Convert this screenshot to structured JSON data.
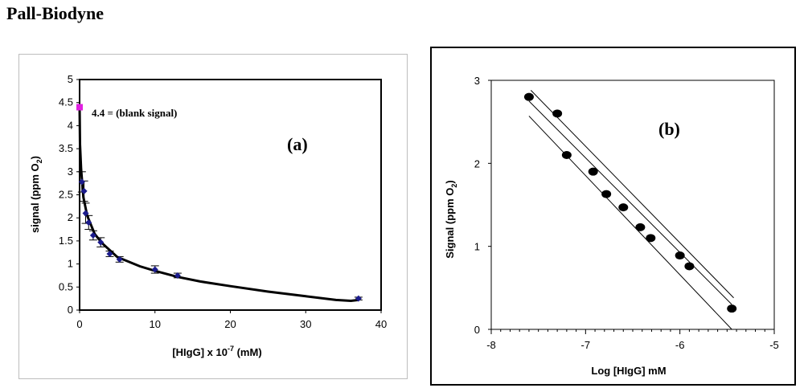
{
  "heading": "Pall-Biodyne",
  "chart_data": [
    {
      "type": "scatter",
      "panel_label": "(a)",
      "xlabel": "[HIgG] x 10",
      "xlabel_exp": "-7",
      "xlabel_unit": " (mM)",
      "ylabel": "signal (ppm O",
      "ylabel_sub": "2",
      "ylabel_end": ")",
      "xlim": [
        0,
        40
      ],
      "ylim": [
        0,
        5
      ],
      "xticks": [
        "0",
        "10",
        "20",
        "30",
        "40"
      ],
      "yticks": [
        "0",
        "0.5",
        "1",
        "1.5",
        "2",
        "2.5",
        "3",
        "3.5",
        "4",
        "4.5",
        "5"
      ],
      "annotation": "4.4 = (blank signal)",
      "blank_point": {
        "x": 0,
        "y": 4.4,
        "color": "#e020e0"
      },
      "series": [
        {
          "name": "measured",
          "marker": "diamond",
          "color": "#1b1b8c",
          "points": [
            {
              "x": 0.3,
              "y": 2.78,
              "err": 0.22
            },
            {
              "x": 0.6,
              "y": 2.58,
              "err": 0.22
            },
            {
              "x": 0.8,
              "y": 2.1,
              "err": 0.22
            },
            {
              "x": 1.2,
              "y": 1.9,
              "err": 0.15
            },
            {
              "x": 1.8,
              "y": 1.62,
              "err": 0.1
            },
            {
              "x": 2.8,
              "y": 1.47,
              "err": 0.1
            },
            {
              "x": 4.0,
              "y": 1.22,
              "err": 0.06
            },
            {
              "x": 5.3,
              "y": 1.1,
              "err": 0.06
            },
            {
              "x": 10.0,
              "y": 0.88,
              "err": 0.08
            },
            {
              "x": 13.0,
              "y": 0.75,
              "err": 0.05
            },
            {
              "x": 37.0,
              "y": 0.25,
              "err": 0.03
            }
          ]
        }
      ],
      "fit_curve": {
        "color": "#000000",
        "x": [
          0,
          0.05,
          0.2,
          0.5,
          1,
          2,
          3,
          5,
          8,
          10,
          13,
          16,
          20,
          25,
          30,
          34,
          36,
          37
        ],
        "y": [
          4.4,
          3.6,
          3.05,
          2.45,
          2.05,
          1.65,
          1.45,
          1.15,
          0.95,
          0.85,
          0.72,
          0.62,
          0.52,
          0.4,
          0.3,
          0.22,
          0.2,
          0.22
        ]
      }
    },
    {
      "type": "scatter",
      "panel_label": "(b)",
      "xlabel": "Log [HIgG] mM",
      "ylabel": "Signal (ppm O",
      "ylabel_sub": "2",
      "ylabel_end": ")",
      "xlim": [
        -8,
        -5
      ],
      "ylim": [
        0,
        3
      ],
      "xticks": [
        "-8",
        "-7",
        "-6",
        "-5"
      ],
      "yticks": [
        "0",
        "1",
        "2",
        "3"
      ],
      "series": [
        {
          "name": "measured",
          "marker": "circle",
          "color": "#000000",
          "points": [
            {
              "x": -7.6,
              "y": 2.8
            },
            {
              "x": -7.3,
              "y": 2.6
            },
            {
              "x": -7.2,
              "y": 2.1
            },
            {
              "x": -6.92,
              "y": 1.9
            },
            {
              "x": -6.78,
              "y": 1.63
            },
            {
              "x": -6.6,
              "y": 1.47
            },
            {
              "x": -6.42,
              "y": 1.23
            },
            {
              "x": -6.31,
              "y": 1.1
            },
            {
              "x": -6.0,
              "y": 0.89
            },
            {
              "x": -5.9,
              "y": 0.76
            },
            {
              "x": -5.45,
              "y": 0.25
            }
          ]
        }
      ],
      "fit_lines": [
        {
          "name": "regression",
          "x": [
            -7.6,
            -5.45
          ],
          "y": [
            2.75,
            0.3
          ]
        },
        {
          "name": "upper-confidence",
          "x": [
            -7.58,
            -5.43
          ],
          "y": [
            2.88,
            0.38
          ]
        },
        {
          "name": "lower-confidence",
          "x": [
            -7.6,
            -5.45
          ],
          "y": [
            2.57,
            0.0
          ]
        }
      ]
    }
  ]
}
